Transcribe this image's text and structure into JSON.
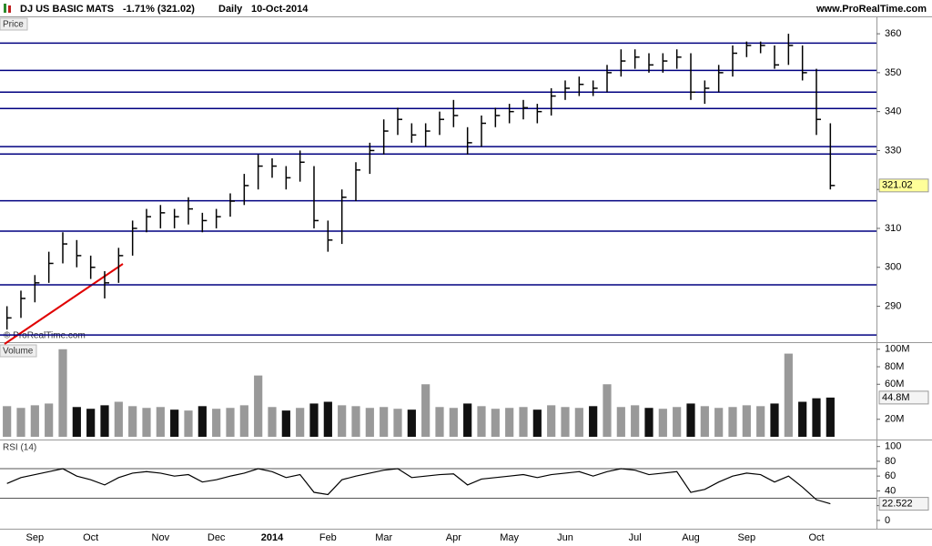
{
  "chart_data": [
    {
      "type": "hlc",
      "title": "DJ US BASIC MATS",
      "change": "-1.71% (321.02)",
      "interval": "Daily",
      "date": "10-Oct-2014",
      "source": "www.ProRealTime.com",
      "panel_label": "Price",
      "watermark": "© ProRealTime.com",
      "categories": [
        null,
        null,
        "Sep",
        null,
        null,
        null,
        "Oct",
        null,
        null,
        null,
        null,
        "Nov",
        null,
        null,
        null,
        "Dec",
        null,
        null,
        null,
        "2014",
        null,
        null,
        null,
        "Feb",
        null,
        null,
        null,
        "Mar",
        null,
        null,
        null,
        null,
        "Apr",
        null,
        null,
        null,
        "May",
        null,
        null,
        null,
        "Jun",
        null,
        null,
        null,
        null,
        "Jul",
        null,
        null,
        null,
        "Aug",
        null,
        null,
        null,
        "Sep",
        null,
        null,
        null,
        null,
        "Oct",
        null
      ],
      "high": [
        290,
        294,
        298,
        304,
        309,
        307,
        303,
        299,
        305,
        312,
        315,
        316,
        315,
        318,
        314,
        315,
        319,
        324,
        329,
        328,
        326,
        330,
        326,
        312,
        320,
        327,
        332,
        338,
        341,
        337,
        337,
        340,
        343,
        336,
        339,
        341,
        342,
        343,
        342,
        346,
        348,
        349,
        348,
        352,
        356,
        356,
        355,
        355,
        356,
        355,
        348,
        352,
        357,
        358,
        358,
        357,
        360,
        357,
        351,
        337
      ],
      "low": [
        284,
        287,
        291,
        296,
        301,
        300,
        297,
        292,
        296,
        303,
        309,
        310,
        310,
        311,
        309,
        310,
        313,
        316,
        320,
        323,
        320,
        322,
        310,
        304,
        306,
        317,
        324,
        329,
        334,
        332,
        331,
        334,
        336,
        329,
        331,
        336,
        337,
        338,
        337,
        339,
        343,
        344,
        344,
        345,
        349,
        351,
        350,
        350,
        351,
        343,
        342,
        345,
        349,
        354,
        355,
        351,
        352,
        348,
        334,
        320
      ],
      "close": [
        287,
        292,
        296,
        301,
        306,
        303,
        300,
        296,
        303,
        310,
        313,
        314,
        313,
        315,
        312,
        313,
        317,
        321,
        326,
        326,
        323,
        327,
        312,
        307,
        318,
        325,
        330,
        335,
        338,
        334,
        335,
        338,
        339,
        332,
        337,
        339,
        340,
        341,
        340,
        344,
        346,
        347,
        346,
        350,
        353,
        354,
        352,
        353,
        354,
        345,
        346,
        350,
        355,
        357,
        357,
        352,
        357,
        350,
        338,
        321.02
      ],
      "color": "#000000",
      "hlines": [
        357.6,
        350.6,
        345,
        340.8,
        331,
        329.1,
        317.1,
        309.3,
        295.5,
        282.6
      ],
      "hline_color": "#000080",
      "ylim": [
        281,
        364
      ],
      "yticks": [
        290,
        300,
        310,
        320,
        330,
        340,
        350,
        360
      ]
    },
    {
      "type": "bar",
      "panel_label": "Volume",
      "values": [
        35,
        33,
        36,
        38,
        100,
        34,
        32,
        36,
        40,
        35,
        33,
        34,
        31,
        30,
        35,
        32,
        33,
        36,
        70,
        34,
        30,
        33,
        38,
        40,
        36,
        35,
        33,
        34,
        32,
        31,
        60,
        34,
        33,
        38,
        35,
        32,
        33,
        34,
        31,
        36,
        34,
        33,
        35,
        60,
        34,
        36,
        33,
        32,
        34,
        38,
        35,
        33,
        34,
        36,
        35,
        38,
        95,
        40,
        44,
        44.8
      ],
      "value_labels": [
        null,
        null,
        null,
        null,
        null,
        null,
        null,
        null,
        null,
        null,
        null,
        null,
        null,
        null,
        null,
        null,
        null,
        null,
        null,
        null,
        null,
        null,
        null,
        null,
        null,
        null,
        null,
        null,
        null,
        null,
        null,
        null,
        null,
        null,
        null,
        null,
        null,
        null,
        null,
        null,
        null,
        null,
        null,
        null,
        null,
        null,
        null,
        null,
        null,
        null,
        null,
        null,
        null,
        null,
        null,
        null,
        null,
        null,
        null,
        "44.8M"
      ],
      "ylim": [
        0,
        106
      ],
      "yticks": [
        {
          "value": 20,
          "label": "20M"
        },
        {
          "value": 60,
          "label": "60M"
        },
        {
          "value": 80,
          "label": "80M"
        },
        {
          "value": 100,
          "label": "100M"
        }
      ]
    },
    {
      "type": "line",
      "panel_label": "RSI (14)",
      "values": [
        50,
        58,
        62,
        66,
        70,
        60,
        55,
        48,
        58,
        64,
        66,
        64,
        60,
        62,
        52,
        55,
        60,
        64,
        70,
        66,
        58,
        62,
        38,
        35,
        55,
        60,
        64,
        68,
        70,
        58,
        60,
        62,
        63,
        48,
        56,
        58,
        60,
        62,
        58,
        62,
        64,
        66,
        60,
        66,
        70,
        68,
        62,
        64,
        66,
        38,
        42,
        52,
        60,
        64,
        62,
        52,
        60,
        45,
        28,
        22.522
      ],
      "color": "#000000",
      "hlines": [
        70,
        30
      ],
      "ylim": [
        -10,
        107
      ],
      "yticks": [
        0,
        20,
        40,
        60,
        80,
        100
      ]
    }
  ]
}
